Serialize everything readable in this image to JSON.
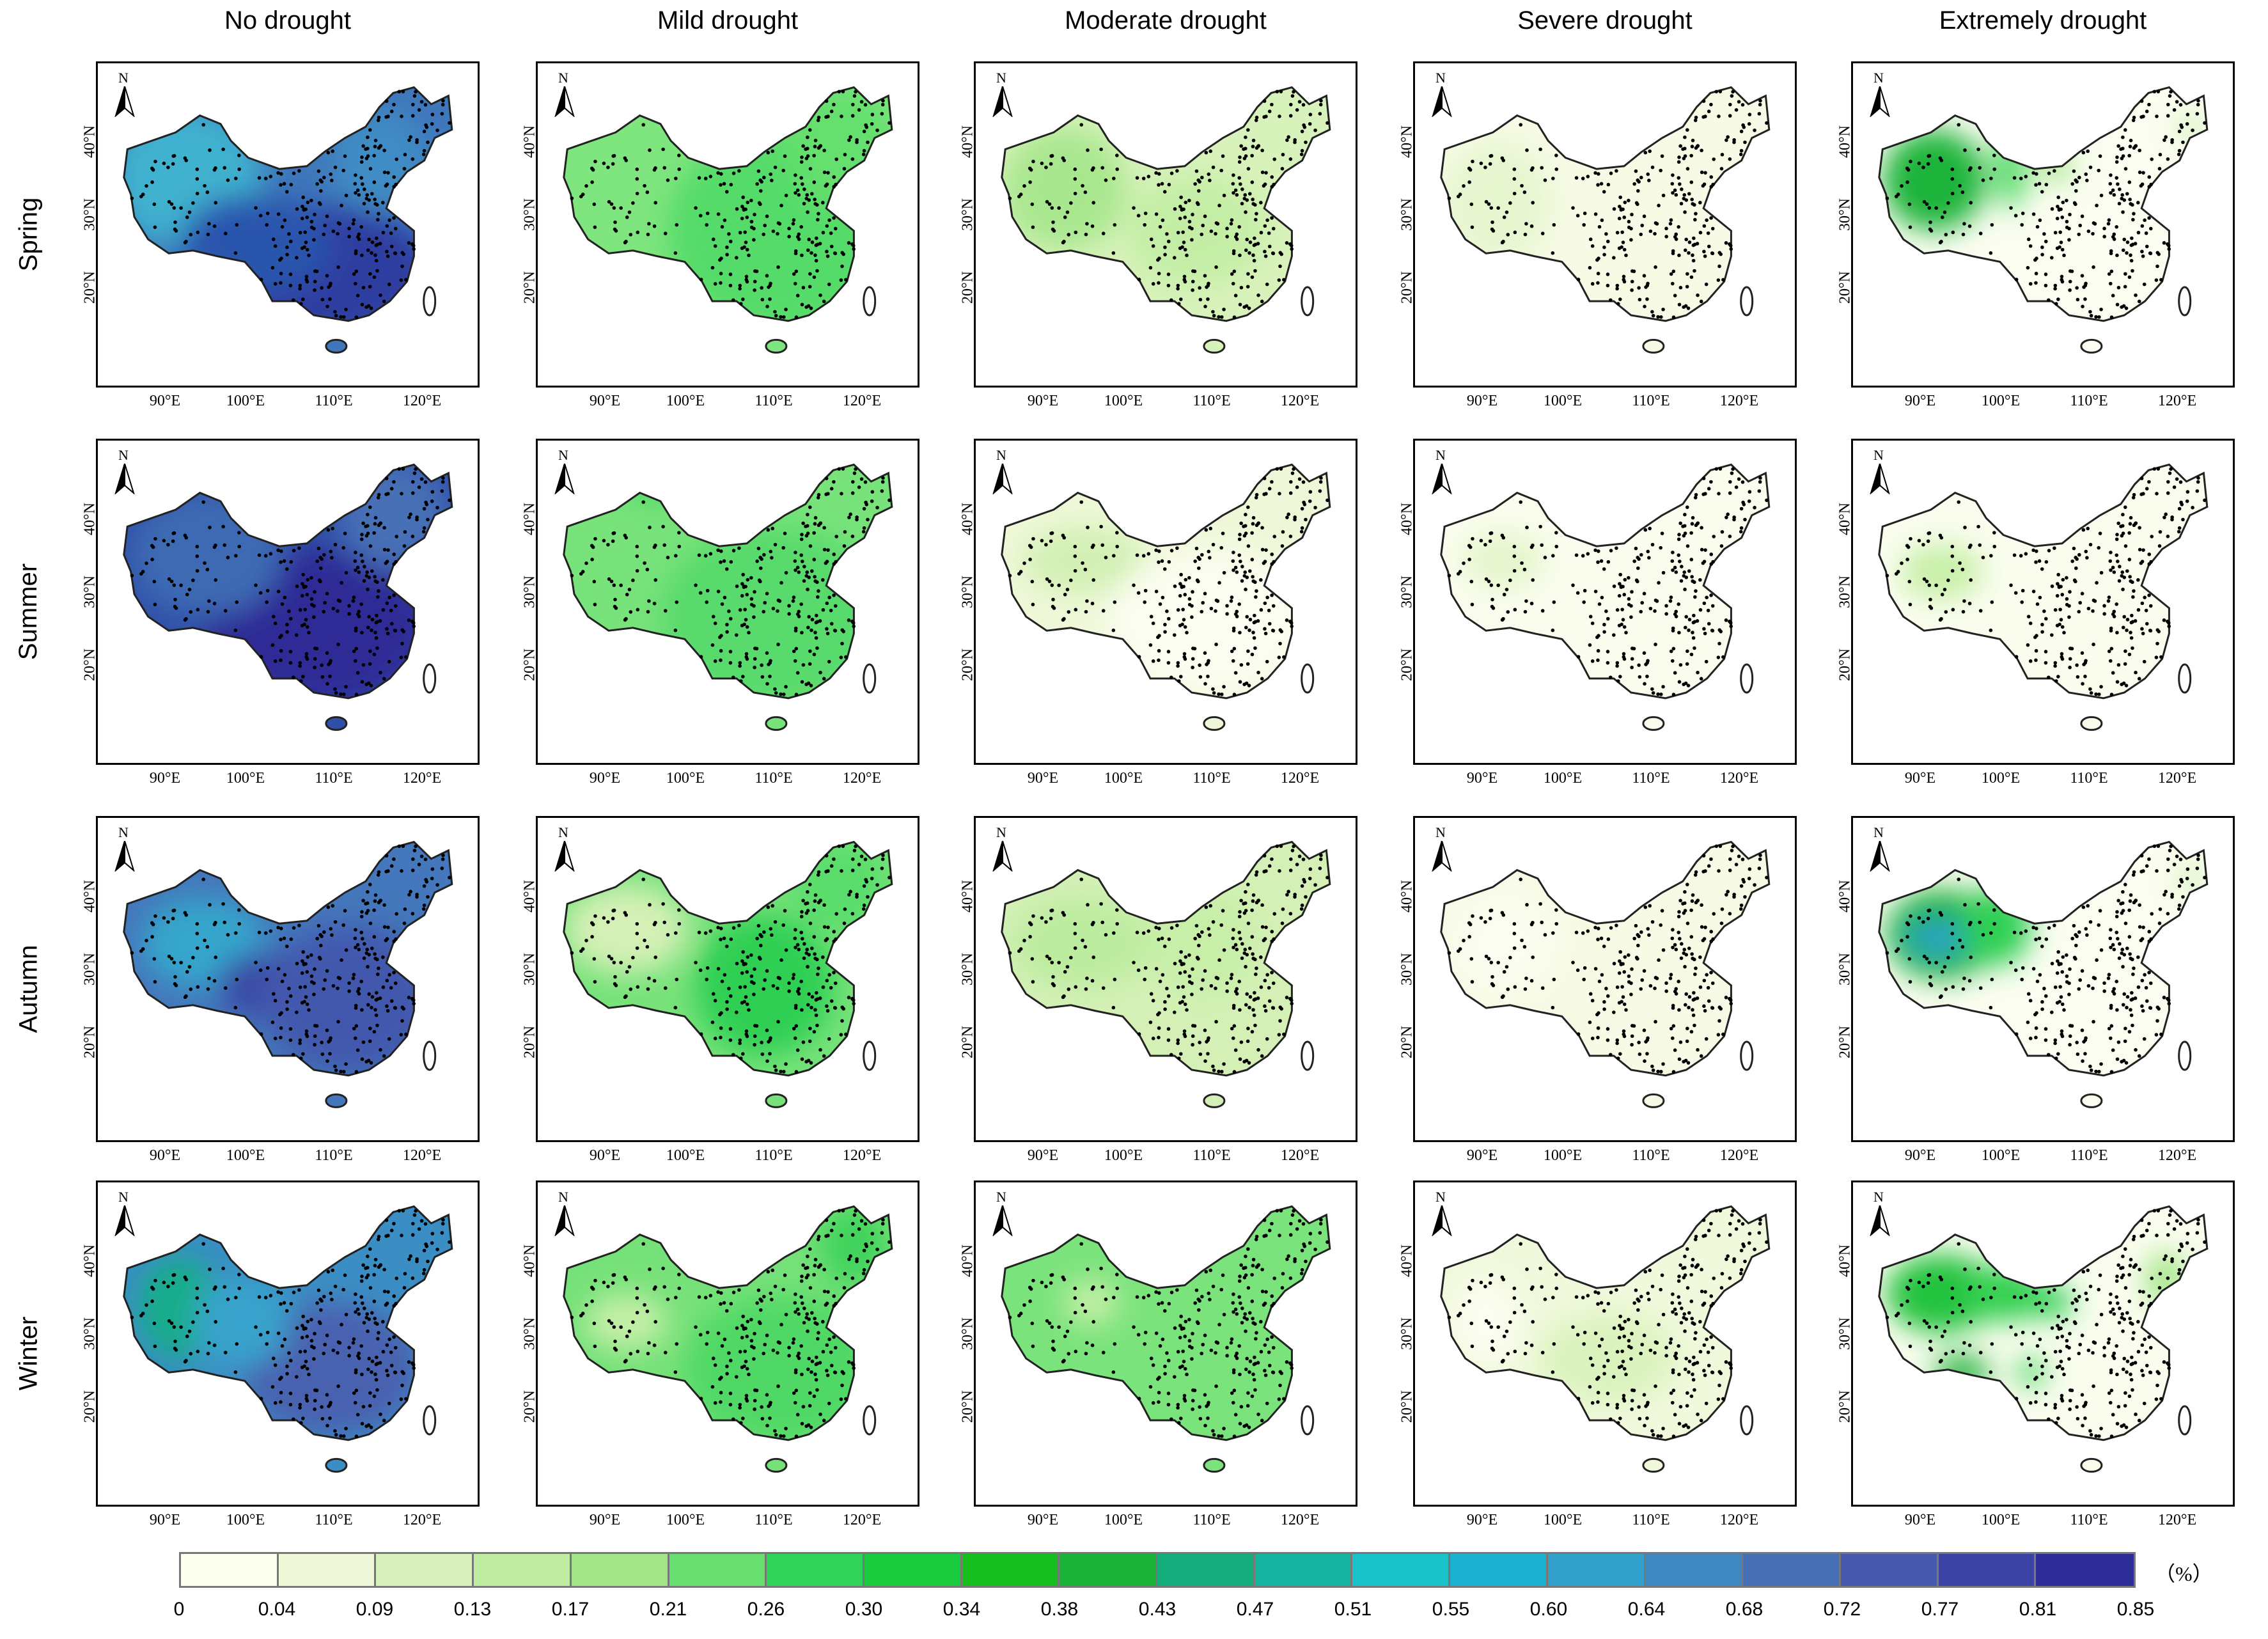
{
  "columns": [
    "No drought",
    "Mild drought",
    "Moderate drought",
    "Severe drought",
    "Extremely drought"
  ],
  "rows": [
    "Spring",
    "Summer",
    "Autumn",
    "Winter"
  ],
  "north_label": "N",
  "lat_labels": [
    "40°N",
    "30°N",
    "20°N"
  ],
  "lon_labels": [
    "90°E",
    "100°E",
    "110°E",
    "120°E"
  ],
  "legend": {
    "unit": "（%）",
    "ticks": [
      "0",
      "0.04",
      "0.09",
      "0.13",
      "0.17",
      "0.21",
      "0.26",
      "0.30",
      "0.34",
      "0.38",
      "0.43",
      "0.47",
      "0.51",
      "0.55",
      "0.60",
      "0.64",
      "0.68",
      "0.72",
      "0.77",
      "0.81",
      "0.85"
    ],
    "colors": [
      "#fcfef0",
      "#eef8d8",
      "#d9f2bd",
      "#c0eda2",
      "#a3e68a",
      "#67de6e",
      "#30d35a",
      "#17cb3c",
      "#16bf1d",
      "#1cb139",
      "#16ad7c",
      "#14b39f",
      "#19c2c8",
      "#1bb1d1",
      "#31a1cc",
      "#3d88c0",
      "#466fb6",
      "#4758ad",
      "#3c42a3",
      "#2e2c96"
    ]
  },
  "panel_fills": [
    [
      {
        "base": "#3f77bb",
        "blobs": [
          [
            "#3fb1cf",
            0.2,
            0.36,
            0.22,
            0.25
          ],
          [
            "#2d3da0",
            0.6,
            0.7,
            0.32,
            0.24
          ],
          [
            "#2c54ad",
            0.4,
            0.6,
            0.22,
            0.18
          ],
          [
            "#3f8cc4",
            0.76,
            0.3,
            0.14,
            0.18
          ]
        ]
      },
      {
        "base": "#7fe57f",
        "blobs": [
          [
            "#55db69",
            0.66,
            0.55,
            0.34,
            0.36
          ],
          [
            "#65df6e",
            0.82,
            0.25,
            0.16,
            0.22
          ]
        ]
      },
      {
        "base": "#d8f2bb",
        "blobs": [
          [
            "#a9e78f",
            0.2,
            0.4,
            0.18,
            0.22
          ],
          [
            "#c4eea6",
            0.58,
            0.55,
            0.2,
            0.2
          ]
        ]
      },
      {
        "base": "#f7fbe6",
        "blobs": [
          [
            "#e6f6cf",
            0.18,
            0.45,
            0.16,
            0.22
          ]
        ]
      },
      {
        "base": "#fbfdf0",
        "blobs": [
          [
            "#1db43a",
            0.18,
            0.37,
            0.15,
            0.18
          ],
          [
            "#54db6a",
            0.4,
            0.33,
            0.05,
            0.14
          ],
          [
            "#a5e78c",
            0.53,
            0.32,
            0.05,
            0.06
          ],
          [
            "#c0eda2",
            0.92,
            0.18,
            0.03,
            0.05
          ]
        ]
      }
    ],
    [
      {
        "base": "#3050a8",
        "blobs": [
          [
            "#2d2c96",
            0.58,
            0.62,
            0.33,
            0.28
          ],
          [
            "#3c6ab3",
            0.26,
            0.36,
            0.22,
            0.22
          ],
          [
            "#466fb6",
            0.8,
            0.22,
            0.16,
            0.2
          ]
        ]
      },
      {
        "base": "#78e27b",
        "blobs": [
          [
            "#58da6c",
            0.62,
            0.58,
            0.32,
            0.32
          ],
          [
            "#3cd35c",
            0.27,
            0.12,
            0.05,
            0.05
          ]
        ]
      },
      {
        "base": "#eef8d8",
        "blobs": [
          [
            "#d2f0b4",
            0.26,
            0.38,
            0.18,
            0.12
          ],
          [
            "#fbfdf0",
            0.62,
            0.6,
            0.3,
            0.26
          ]
        ]
      },
      {
        "base": "#fafdee",
        "blobs": [
          [
            "#e4f5cb",
            0.2,
            0.38,
            0.12,
            0.1
          ]
        ]
      },
      {
        "base": "#fafdee",
        "blobs": [
          [
            "#c7efa8",
            0.2,
            0.42,
            0.12,
            0.1
          ]
        ]
      }
    ],
    [
      {
        "base": "#4477bb",
        "blobs": [
          [
            "#16ad7c",
            0.18,
            0.35,
            0.08,
            0.1
          ],
          [
            "#36a6cc",
            0.25,
            0.4,
            0.18,
            0.16
          ],
          [
            "#3a48a6",
            0.43,
            0.55,
            0.14,
            0.12
          ],
          [
            "#4258ad",
            0.68,
            0.6,
            0.26,
            0.26
          ]
        ]
      },
      {
        "base": "#77e27a",
        "blobs": [
          [
            "#d4f0b6",
            0.2,
            0.35,
            0.18,
            0.16
          ],
          [
            "#2fcf52",
            0.6,
            0.55,
            0.2,
            0.25
          ],
          [
            "#5add6c",
            0.82,
            0.2,
            0.14,
            0.16
          ]
        ]
      },
      {
        "base": "#d4f0b6",
        "blobs": [
          [
            "#bcec9f",
            0.25,
            0.4,
            0.2,
            0.16
          ],
          [
            "#c7efa8",
            0.6,
            0.4,
            0.16,
            0.2
          ]
        ]
      },
      {
        "base": "#f7fbe6",
        "blobs": [
          [
            "#fbfdf0",
            0.2,
            0.4,
            0.14,
            0.16
          ]
        ]
      },
      {
        "base": "#fbfdf0",
        "blobs": [
          [
            "#1cb139",
            0.2,
            0.37,
            0.16,
            0.16
          ],
          [
            "#2fa2cc",
            0.19,
            0.38,
            0.09,
            0.06
          ],
          [
            "#2fcf52",
            0.36,
            0.34,
            0.1,
            0.14
          ],
          [
            "#c0eda2",
            0.92,
            0.17,
            0.03,
            0.05
          ]
        ]
      }
    ],
    [
      {
        "base": "#3b8ec4",
        "blobs": [
          [
            "#15ad8a",
            0.18,
            0.4,
            0.12,
            0.18
          ],
          [
            "#4a62b0",
            0.62,
            0.62,
            0.26,
            0.24
          ],
          [
            "#38a3cc",
            0.36,
            0.45,
            0.14,
            0.16
          ]
        ]
      },
      {
        "base": "#76e179",
        "blobs": [
          [
            "#c6efa8",
            0.2,
            0.45,
            0.12,
            0.1
          ],
          [
            "#4fd865",
            0.65,
            0.62,
            0.28,
            0.26
          ],
          [
            "#3fd35c",
            0.86,
            0.18,
            0.1,
            0.14
          ]
        ]
      },
      {
        "base": "#7be37c",
        "blobs": [
          [
            "#c6efa8",
            0.28,
            0.38,
            0.08,
            0.08
          ]
        ]
      },
      {
        "base": "#f0f9dc",
        "blobs": [
          [
            "#fbfdf0",
            0.15,
            0.45,
            0.1,
            0.16
          ],
          [
            "#daf3bd",
            0.5,
            0.58,
            0.2,
            0.16
          ]
        ]
      },
      {
        "base": "#fafdee",
        "blobs": [
          [
            "#22c23e",
            0.2,
            0.35,
            0.16,
            0.14
          ],
          [
            "#30cf50",
            0.38,
            0.35,
            0.12,
            0.1
          ],
          [
            "#2fcf52",
            0.52,
            0.38,
            0.06,
            0.06
          ],
          [
            "#1cb139",
            0.26,
            0.63,
            0.08,
            0.06
          ],
          [
            "#3ad358",
            0.46,
            0.63,
            0.04,
            0.05
          ],
          [
            "#a3e68a",
            0.85,
            0.3,
            0.06,
            0.1
          ]
        ]
      }
    ]
  ]
}
